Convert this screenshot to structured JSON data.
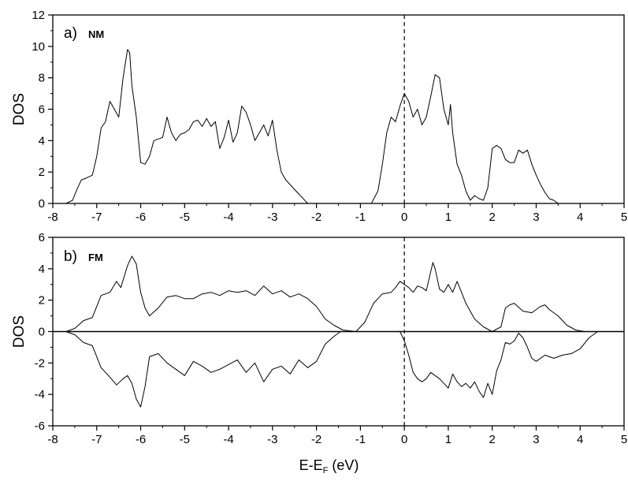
{
  "chart_data": [
    {
      "type": "line",
      "panel_label": "a)",
      "panel_tag": "NM",
      "ylabel": "DOS",
      "xlim": [
        -8,
        5
      ],
      "ylim": [
        0,
        12
      ],
      "xticks": [
        -8,
        -7,
        -6,
        -5,
        -4,
        -3,
        -2,
        -1,
        0,
        1,
        2,
        3,
        4,
        5
      ],
      "yticks": [
        0,
        2,
        4,
        6,
        8,
        10,
        12
      ],
      "fermi_level": 0,
      "series": [
        {
          "x": [
            -7.7,
            -7.55,
            -7.45,
            -7.35,
            -7.25,
            -7.1,
            -7.0,
            -6.9,
            -6.8,
            -6.7,
            -6.6,
            -6.5,
            -6.4,
            -6.3,
            -6.25,
            -6.2,
            -6.1,
            -6.0,
            -5.9,
            -5.8,
            -5.7,
            -5.6,
            -5.5,
            -5.4,
            -5.3,
            -5.2,
            -5.1,
            -5.0,
            -4.9,
            -4.8,
            -4.7,
            -4.6,
            -4.5,
            -4.4,
            -4.3,
            -4.2,
            -4.1,
            -4.0,
            -3.9,
            -3.8,
            -3.7,
            -3.6,
            -3.5,
            -3.4,
            -3.3,
            -3.2,
            -3.1,
            -3.0,
            -2.9,
            -2.8,
            -2.7,
            -2.6,
            -2.5,
            -2.4,
            -2.3,
            -2.2,
            -2.1,
            -2.0,
            -1.9,
            -1.8,
            -1.7,
            -1.6,
            -0.75,
            -0.6,
            -0.5,
            -0.4,
            -0.3,
            -0.2,
            -0.1,
            0.0,
            0.1,
            0.2,
            0.3,
            0.4,
            0.5,
            0.6,
            0.7,
            0.8,
            0.9,
            1.0,
            1.05,
            1.1,
            1.2,
            1.3,
            1.4,
            1.5,
            1.6,
            1.7,
            1.8,
            1.9,
            2.0,
            2.1,
            2.2,
            2.3,
            2.4,
            2.5,
            2.6,
            2.7,
            2.8,
            2.9,
            3.0,
            3.1,
            3.2,
            3.3,
            3.4,
            3.5,
            3.6,
            3.7,
            3.8,
            3.9,
            4.0
          ],
          "y": [
            0.0,
            0.2,
            0.9,
            1.5,
            1.6,
            1.8,
            3.0,
            4.8,
            5.2,
            6.5,
            6.0,
            5.5,
            8.0,
            9.8,
            9.6,
            7.5,
            5.5,
            2.6,
            2.5,
            3.0,
            4.0,
            4.1,
            4.2,
            5.5,
            4.5,
            4.0,
            4.4,
            4.5,
            4.7,
            5.2,
            5.3,
            4.9,
            5.4,
            4.9,
            5.2,
            3.5,
            4.2,
            5.3,
            3.9,
            4.5,
            6.2,
            5.8,
            5.0,
            4.0,
            4.5,
            5.0,
            4.3,
            5.3,
            3.4,
            2.0,
            1.5,
            1.2,
            0.9,
            0.6,
            0.3,
            0.0,
            0.0,
            0.0,
            0.0,
            0.0,
            0.0,
            0.0,
            0.0,
            0.8,
            2.5,
            4.5,
            5.5,
            5.2,
            6.2,
            7.0,
            6.5,
            5.5,
            6.0,
            5.0,
            5.5,
            6.8,
            8.2,
            8.0,
            6.0,
            5.0,
            6.3,
            4.5,
            2.5,
            1.8,
            0.8,
            0.2,
            0.5,
            0.3,
            0.2,
            1.0,
            3.5,
            3.7,
            3.5,
            2.8,
            2.6,
            2.6,
            3.4,
            3.2,
            3.4,
            2.5,
            1.8,
            1.2,
            0.7,
            0.3,
            0.2,
            0.0,
            0.0,
            0.0,
            0.0,
            0.0,
            0.0
          ]
        }
      ]
    },
    {
      "type": "line",
      "panel_label": "b)",
      "panel_tag": "FM",
      "ylabel": "DOS",
      "xlabel_main": "E-E",
      "xlabel_sub": "F",
      "xlabel_unit": " (eV)",
      "xlim": [
        -8,
        5
      ],
      "ylim": [
        -6,
        6
      ],
      "xticks": [
        -8,
        -7,
        -6,
        -5,
        -4,
        -3,
        -2,
        -1,
        0,
        1,
        2,
        3,
        4,
        5
      ],
      "yticks": [
        -6,
        -4,
        -2,
        0,
        2,
        4,
        6
      ],
      "fermi_level": 0,
      "series": [
        {
          "x": [
            -7.7,
            -7.5,
            -7.3,
            -7.1,
            -6.9,
            -6.7,
            -6.55,
            -6.45,
            -6.3,
            -6.2,
            -6.1,
            -6.0,
            -5.9,
            -5.8,
            -5.6,
            -5.4,
            -5.2,
            -5.0,
            -4.8,
            -4.6,
            -4.4,
            -4.2,
            -4.0,
            -3.8,
            -3.6,
            -3.4,
            -3.2,
            -3.0,
            -2.8,
            -2.6,
            -2.4,
            -2.2,
            -2.0,
            -1.8,
            -1.6,
            -1.4,
            -1.1,
            -0.9,
            -0.7,
            -0.5,
            -0.3,
            -0.2,
            -0.1,
            0.0,
            0.1,
            0.2,
            0.3,
            0.4,
            0.5,
            0.6,
            0.65,
            0.7,
            0.8,
            0.9,
            1.0,
            1.1,
            1.2,
            1.3,
            1.4,
            1.6,
            1.8,
            2.0,
            2.2,
            2.3,
            2.4,
            2.5,
            2.7,
            2.9,
            3.1,
            3.2,
            3.3,
            3.5,
            3.7,
            3.9,
            4.1
          ],
          "y": [
            0.0,
            0.2,
            0.7,
            0.9,
            2.3,
            2.5,
            3.2,
            2.8,
            4.2,
            4.8,
            4.3,
            2.5,
            1.5,
            1.0,
            1.5,
            2.2,
            2.3,
            2.1,
            2.1,
            2.4,
            2.5,
            2.3,
            2.6,
            2.5,
            2.6,
            2.3,
            2.9,
            2.4,
            2.6,
            2.2,
            2.4,
            2.1,
            1.6,
            0.8,
            0.4,
            0.1,
            0.0,
            0.6,
            1.8,
            2.4,
            2.5,
            2.8,
            3.2,
            3.0,
            2.8,
            2.5,
            2.9,
            2.8,
            2.6,
            3.8,
            4.4,
            4.0,
            2.7,
            2.5,
            3.0,
            2.5,
            3.2,
            2.5,
            1.8,
            0.8,
            0.3,
            0.0,
            0.3,
            1.5,
            1.7,
            1.8,
            1.3,
            1.2,
            1.6,
            1.7,
            1.4,
            1.0,
            0.4,
            0.1,
            0.0
          ]
        },
        {
          "x": [
            -7.7,
            -7.5,
            -7.3,
            -7.1,
            -6.9,
            -6.7,
            -6.55,
            -6.4,
            -6.3,
            -6.2,
            -6.1,
            -6.0,
            -5.9,
            -5.8,
            -5.6,
            -5.4,
            -5.2,
            -5.0,
            -4.8,
            -4.6,
            -4.4,
            -4.2,
            -4.0,
            -3.8,
            -3.6,
            -3.4,
            -3.2,
            -3.0,
            -2.8,
            -2.6,
            -2.4,
            -2.2,
            -2.0,
            -1.8,
            -1.6,
            -1.45,
            -0.1,
            0.0,
            0.1,
            0.2,
            0.3,
            0.4,
            0.5,
            0.6,
            0.7,
            0.8,
            0.9,
            1.0,
            1.1,
            1.2,
            1.3,
            1.4,
            1.5,
            1.6,
            1.7,
            1.8,
            1.9,
            2.0,
            2.1,
            2.2,
            2.3,
            2.4,
            2.5,
            2.6,
            2.7,
            2.8,
            2.9,
            3.0,
            3.2,
            3.4,
            3.6,
            3.8,
            4.0,
            4.2,
            4.4
          ],
          "y": [
            0.0,
            -0.2,
            -0.7,
            -0.9,
            -2.3,
            -2.9,
            -3.4,
            -3.0,
            -2.8,
            -3.3,
            -4.3,
            -4.8,
            -3.5,
            -1.6,
            -1.4,
            -2.0,
            -2.4,
            -2.8,
            -1.9,
            -2.2,
            -2.6,
            -2.4,
            -2.1,
            -1.8,
            -2.6,
            -2.0,
            -3.2,
            -2.4,
            -2.2,
            -2.7,
            -1.8,
            -2.3,
            -1.9,
            -0.8,
            -0.3,
            0.0,
            0.0,
            -0.6,
            -1.5,
            -2.6,
            -3.0,
            -3.2,
            -3.0,
            -2.6,
            -2.8,
            -3.0,
            -3.3,
            -3.6,
            -2.7,
            -3.2,
            -3.5,
            -3.3,
            -3.6,
            -3.2,
            -3.8,
            -4.2,
            -3.3,
            -4.0,
            -2.5,
            -1.8,
            -0.7,
            -0.8,
            -0.6,
            -0.1,
            -0.4,
            -1.0,
            -1.7,
            -1.9,
            -1.5,
            -1.7,
            -1.5,
            -1.4,
            -1.1,
            -0.4,
            0.0
          ]
        }
      ]
    }
  ]
}
